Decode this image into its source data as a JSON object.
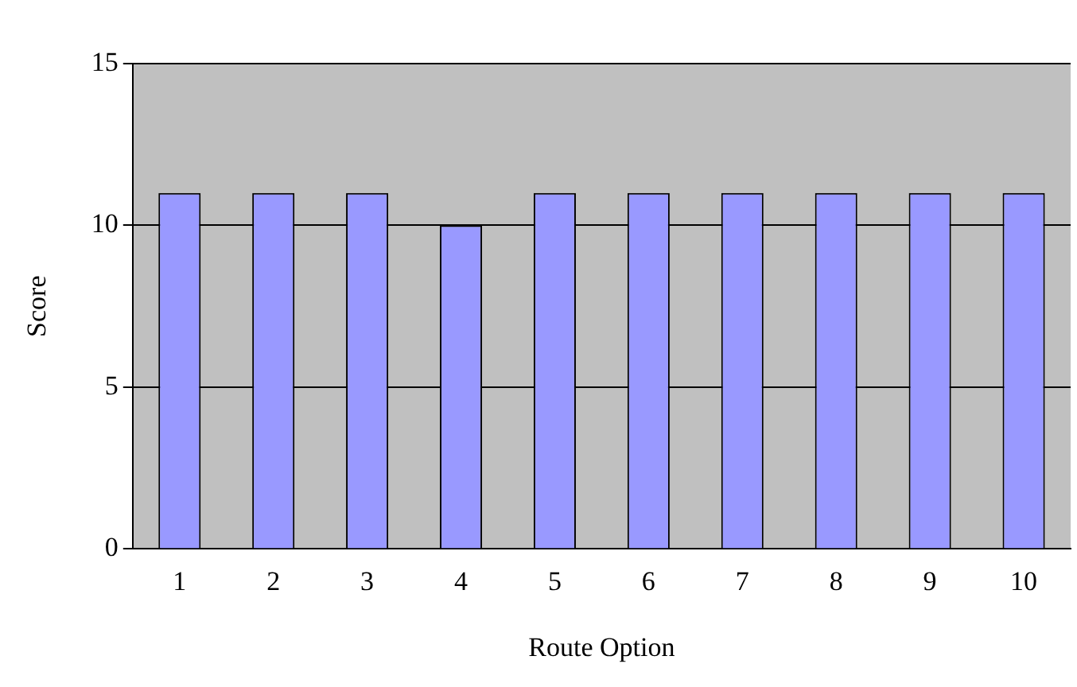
{
  "chart_data": {
    "type": "bar",
    "xlabel": "Route Option",
    "ylabel": "Score",
    "categories": [
      "1",
      "2",
      "3",
      "4",
      "5",
      "6",
      "7",
      "8",
      "9",
      "10"
    ],
    "values": [
      11,
      11,
      11,
      10,
      11,
      11,
      11,
      11,
      11,
      11
    ],
    "color": "#9999ff",
    "ylim": [
      0,
      15
    ],
    "yticks": [
      0,
      5,
      10,
      15
    ],
    "grid": "y",
    "legend": false
  }
}
